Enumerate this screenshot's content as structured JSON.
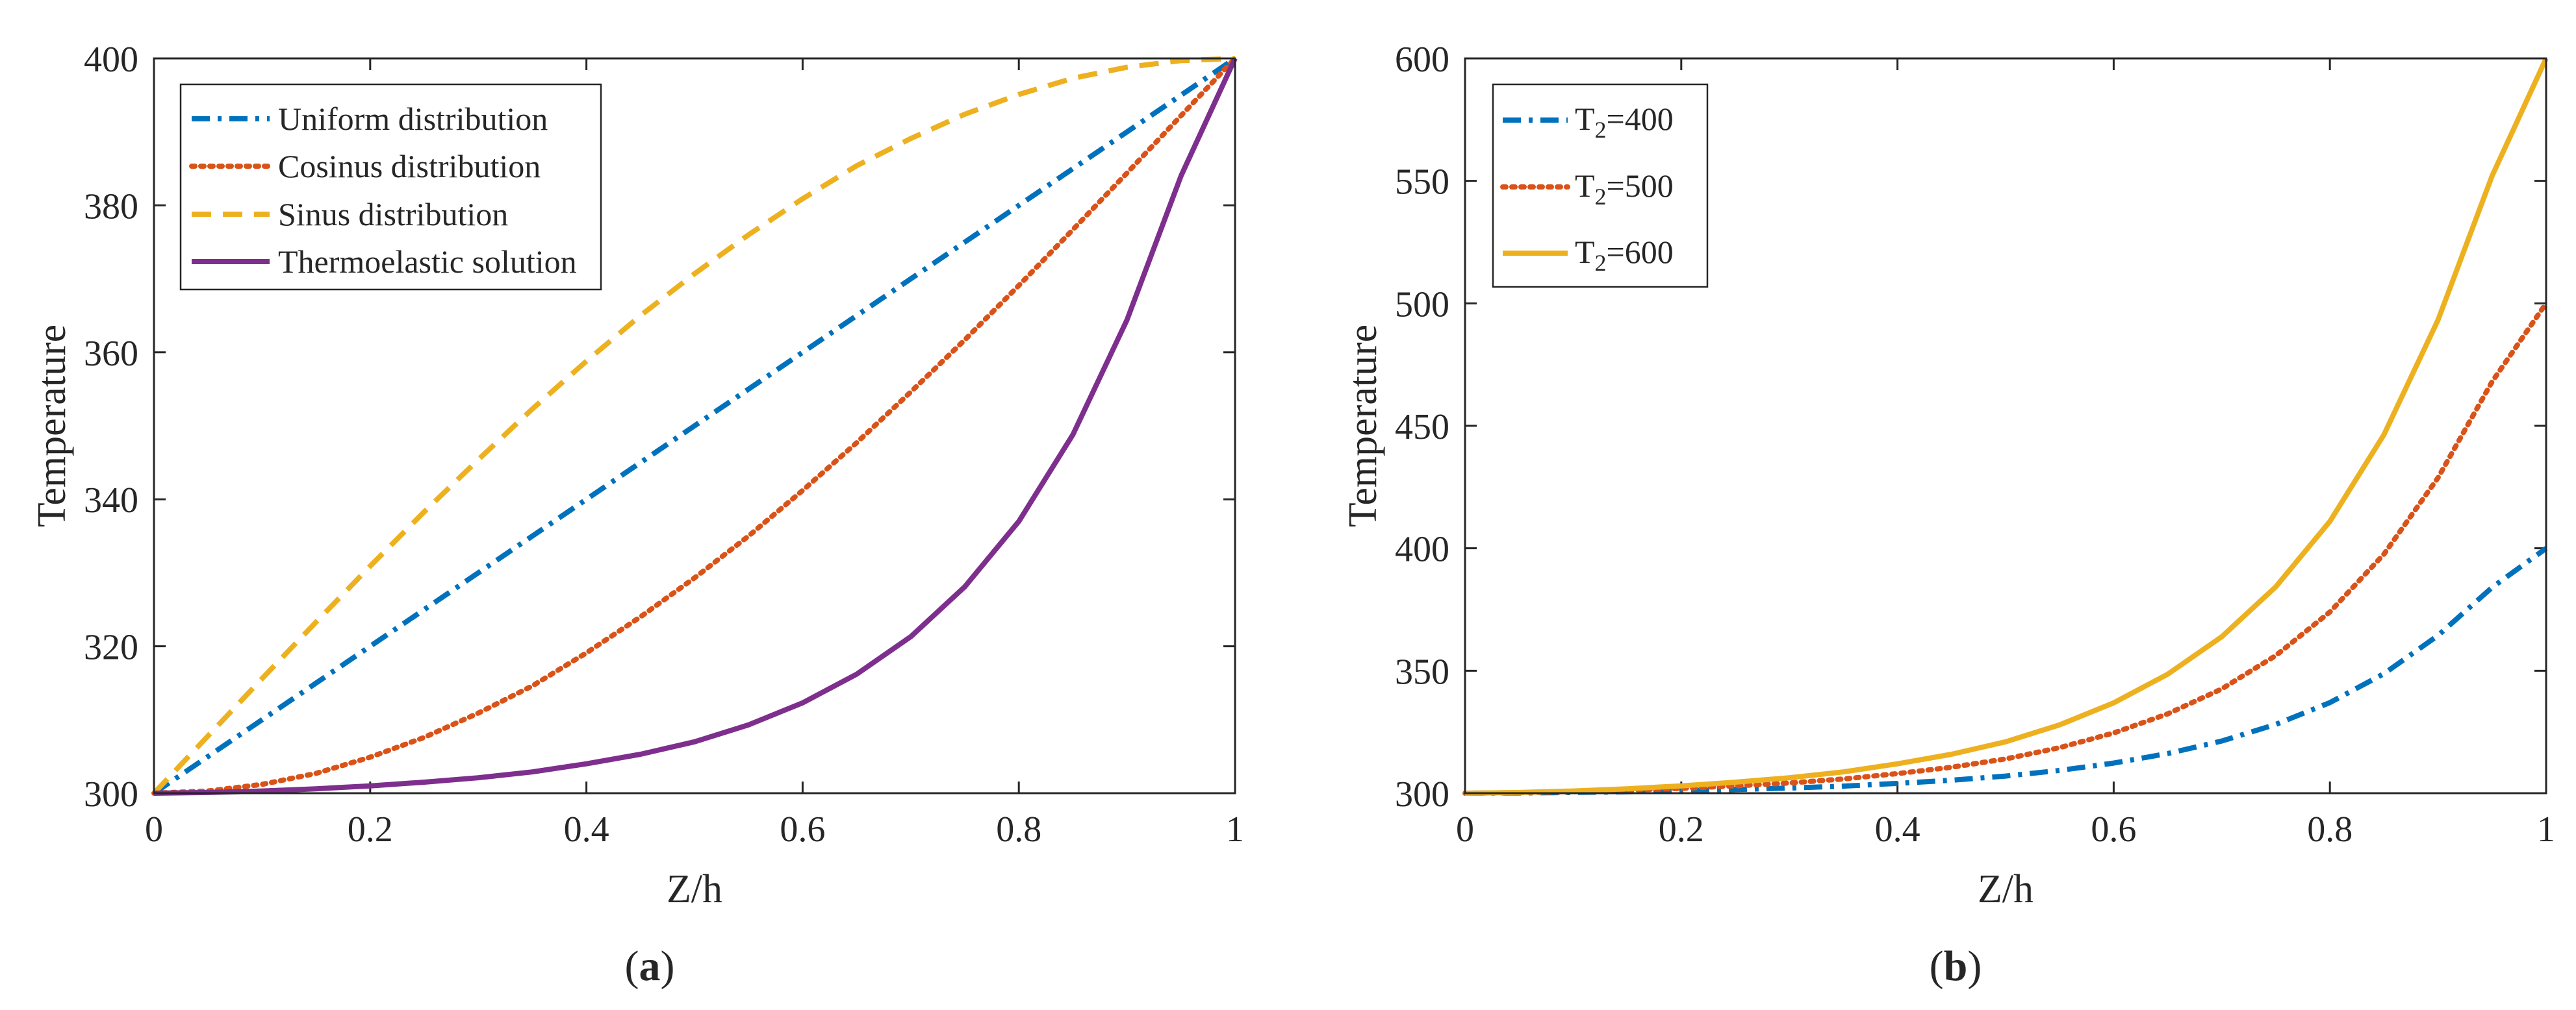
{
  "figure": {
    "colors": {
      "blue": "#0072BD",
      "orange": "#D95319",
      "yellow": "#EDB120",
      "purple": "#7E2F8E",
      "axis": "#262626"
    }
  },
  "chart_data": [
    {
      "type": "line",
      "panel_label": "a",
      "xlabel": "Z/h",
      "ylabel": "Temperature",
      "xlim": [
        0,
        1
      ],
      "ylim": [
        300,
        400
      ],
      "xticks": [
        0,
        0.2,
        0.4,
        0.6,
        0.8,
        1
      ],
      "xtick_labels": [
        "0",
        "0.2",
        "0.4",
        "0.6",
        "0.8",
        "1"
      ],
      "yticks": [
        300,
        320,
        340,
        360,
        380,
        400
      ],
      "ytick_labels": [
        "300",
        "320",
        "340",
        "360",
        "380",
        "400"
      ],
      "legend_position": "top-left",
      "x": [
        0,
        0.05,
        0.1,
        0.15,
        0.2,
        0.25,
        0.3,
        0.35,
        0.4,
        0.45,
        0.5,
        0.55,
        0.6,
        0.65,
        0.7,
        0.75,
        0.8,
        0.85,
        0.9,
        0.95,
        1
      ],
      "series": [
        {
          "name": "Uniform distribution",
          "style": "dashdot",
          "color_key": "blue",
          "values": [
            300,
            305,
            310,
            315,
            320,
            325,
            330,
            335,
            340,
            345,
            350,
            355,
            360,
            365,
            370,
            375,
            380,
            385,
            390,
            395,
            400
          ]
        },
        {
          "name": "Cosinus distribution",
          "style": "dotted",
          "color_key": "orange",
          "values": [
            300,
            300.3,
            301.2,
            302.7,
            304.9,
            307.6,
            310.9,
            314.6,
            319.1,
            324.0,
            329.3,
            335.0,
            341.2,
            347.7,
            354.6,
            361.7,
            369.1,
            376.7,
            384.4,
            392.2,
            400
          ]
        },
        {
          "name": "Sinus distribution",
          "style": "dashed",
          "color_key": "yellow",
          "values": [
            300,
            307.8,
            315.6,
            323.3,
            330.9,
            338.3,
            345.4,
            352.3,
            358.8,
            365.0,
            370.7,
            376.0,
            380.9,
            385.4,
            389.1,
            392.4,
            395.1,
            397.3,
            398.8,
            399.7,
            400
          ]
        },
        {
          "name": "Thermoelastic solution",
          "style": "solid",
          "color_key": "purple",
          "values": [
            300,
            300.1,
            300.3,
            300.6,
            301.0,
            301.5,
            302.1,
            302.9,
            304.0,
            305.3,
            307.0,
            309.3,
            312.3,
            316.2,
            321.3,
            328.1,
            337.0,
            348.8,
            364.4,
            384.0,
            400
          ]
        }
      ]
    },
    {
      "type": "line",
      "panel_label": "b",
      "xlabel": "Z/h",
      "ylabel": "Temperature",
      "xlim": [
        0,
        1
      ],
      "ylim": [
        300,
        600
      ],
      "xticks": [
        0,
        0.2,
        0.4,
        0.6,
        0.8,
        1
      ],
      "xtick_labels": [
        "0",
        "0.2",
        "0.4",
        "0.6",
        "0.8",
        "1"
      ],
      "yticks": [
        300,
        350,
        400,
        450,
        500,
        550,
        600
      ],
      "ytick_labels": [
        "300",
        "350",
        "400",
        "450",
        "500",
        "550",
        "600"
      ],
      "legend_position": "top-left",
      "x": [
        0,
        0.05,
        0.1,
        0.15,
        0.2,
        0.25,
        0.3,
        0.35,
        0.4,
        0.45,
        0.5,
        0.55,
        0.6,
        0.65,
        0.7,
        0.75,
        0.8,
        0.85,
        0.9,
        0.95,
        1
      ],
      "series": [
        {
          "name": "T2=400",
          "legend_main": "T",
          "legend_sub": "2",
          "legend_rest": "=400",
          "style": "dashdot",
          "color_key": "blue",
          "values": [
            300,
            300.1,
            300.3,
            300.6,
            301.0,
            301.5,
            302.1,
            302.9,
            304.0,
            305.3,
            307.0,
            309.3,
            312.3,
            316.2,
            321.3,
            328.1,
            337.0,
            348.8,
            364.4,
            384.0,
            400
          ]
        },
        {
          "name": "T2=500",
          "legend_main": "T",
          "legend_sub": "2",
          "legend_rest": "=500",
          "style": "dotted",
          "color_key": "orange",
          "values": [
            300,
            300.2,
            300.6,
            301.2,
            302.0,
            303.0,
            304.2,
            305.8,
            308.0,
            310.6,
            314.0,
            318.6,
            324.6,
            332.4,
            342.6,
            356.2,
            374.0,
            397.6,
            428.8,
            468.0,
            500
          ]
        },
        {
          "name": "T2=600",
          "legend_main": "T",
          "legend_sub": "2",
          "legend_rest": "=600",
          "style": "solid",
          "color_key": "yellow",
          "values": [
            300,
            300.3,
            300.9,
            301.8,
            303.0,
            304.5,
            306.3,
            308.7,
            312.0,
            315.9,
            321.0,
            327.9,
            336.9,
            348.6,
            363.9,
            384.3,
            411.0,
            446.4,
            493.2,
            552.0,
            600
          ]
        }
      ]
    }
  ]
}
